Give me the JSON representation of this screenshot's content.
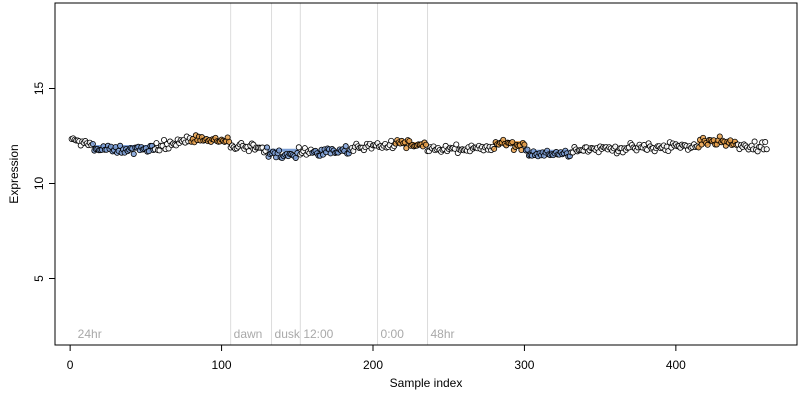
{
  "chart_data": {
    "type": "scatter",
    "xlabel": "Sample index",
    "ylabel": "Expression",
    "xlim": [
      -10,
      480
    ],
    "ylim": [
      1.5,
      19.5
    ],
    "x_ticks": [
      0,
      100,
      200,
      300,
      400
    ],
    "y_ticks": [
      5,
      10,
      15
    ],
    "grid": false,
    "legend": "none",
    "phase_markers": [
      {
        "label": "24hr",
        "x": 3,
        "line": false
      },
      {
        "label": "dawn",
        "x": 106,
        "line": true
      },
      {
        "label": "dusk",
        "x": 133,
        "line": true
      },
      {
        "label": "12:00",
        "x": 152,
        "line": true
      },
      {
        "label": "0:00",
        "x": 203,
        "line": true
      },
      {
        "label": "48hr",
        "x": 236,
        "line": true
      }
    ],
    "n_points": 460,
    "baseline": 12.0,
    "series": [
      {
        "values_by_segment": [
          {
            "from": 1,
            "to": 15,
            "start": 12.3,
            "end": 12.1
          },
          {
            "from": 15,
            "to": 55,
            "start": 11.8,
            "end": 11.8
          },
          {
            "from": 55,
            "to": 80,
            "start": 11.9,
            "end": 12.3
          },
          {
            "from": 80,
            "to": 105,
            "start": 12.35,
            "end": 12.2
          },
          {
            "from": 105,
            "to": 130,
            "start": 11.95,
            "end": 11.8
          },
          {
            "from": 130,
            "to": 150,
            "start": 11.6,
            "end": 11.5
          },
          {
            "from": 150,
            "to": 185,
            "start": 11.6,
            "end": 11.8
          },
          {
            "from": 185,
            "to": 215,
            "start": 11.9,
            "end": 12.0
          },
          {
            "from": 215,
            "to": 235,
            "start": 12.2,
            "end": 12.0
          },
          {
            "from": 235,
            "to": 280,
            "start": 11.8,
            "end": 11.8
          },
          {
            "from": 280,
            "to": 300,
            "start": 12.2,
            "end": 11.9
          },
          {
            "from": 300,
            "to": 330,
            "start": 11.6,
            "end": 11.6
          },
          {
            "from": 330,
            "to": 395,
            "start": 11.8,
            "end": 11.9
          },
          {
            "from": 395,
            "to": 415,
            "start": 12.0,
            "end": 11.9
          },
          {
            "from": 415,
            "to": 440,
            "start": 12.3,
            "end": 12.1
          },
          {
            "from": 440,
            "to": 462,
            "start": 11.9,
            "end": 12.0
          }
        ],
        "noise": 0.22
      }
    ],
    "fit_segments": [
      {
        "from": 15,
        "to": 55,
        "value": 11.95,
        "color": "#7d9fd6"
      },
      {
        "from": 80,
        "to": 105,
        "value": 12.3,
        "color": "#e8a04a"
      },
      {
        "from": 130,
        "to": 150,
        "value": 11.75,
        "color": "#7d9fd6"
      },
      {
        "from": 160,
        "to": 185,
        "value": 11.7,
        "color": "#7d9fd6"
      },
      {
        "from": 215,
        "to": 235,
        "value": 12.1,
        "color": "#e8a04a"
      },
      {
        "from": 280,
        "to": 300,
        "value": 12.15,
        "color": "#e8a04a"
      },
      {
        "from": 300,
        "to": 330,
        "value": 11.7,
        "color": "#7d9fd6"
      },
      {
        "from": 415,
        "to": 440,
        "value": 12.2,
        "color": "#e8a04a"
      }
    ],
    "colors": {
      "point_fill_neutral": "#ffffff",
      "point_fill_low": "#7d9fd6",
      "point_fill_high": "#e8a04a",
      "point_stroke": "#000000",
      "phase_line": "#dcdcdc",
      "phase_text": "#a9a9a9"
    }
  }
}
